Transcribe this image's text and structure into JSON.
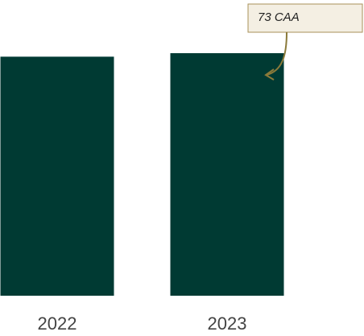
{
  "chart_data": {
    "type": "bar",
    "categories": [
      "2022",
      "2023"
    ],
    "values": [
      68,
      69
    ],
    "color": "#003a33",
    "ylim": [
      0,
      80
    ],
    "annotations": [
      "73 CAA"
    ]
  }
}
